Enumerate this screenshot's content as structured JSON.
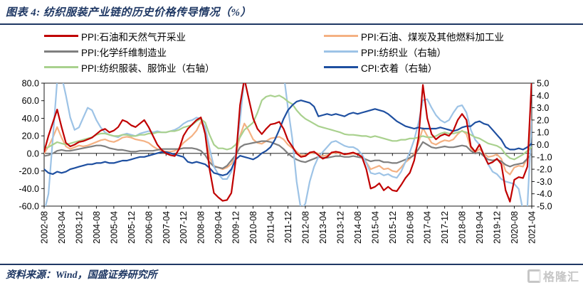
{
  "footer": {
    "source_label": "资料来源：Wind，国盛证券研究所",
    "watermark": "格隆汇"
  },
  "chart_data": {
    "type": "line",
    "title": "图表 4: 纺织服装产业链的历史价格传导情况（%）",
    "x_start": "2002-08",
    "x_end": "2021-04",
    "x_step_months": 2,
    "x_tick_interval_months": 8,
    "x_tick_labels": [
      "2002-08",
      "2003-04",
      "2003-12",
      "2004-08",
      "2005-04",
      "2005-12",
      "2006-08",
      "2007-04",
      "2007-12",
      "2008-08",
      "2009-04",
      "2009-12",
      "2010-08",
      "2011-04",
      "2011-12",
      "2012-08",
      "2013-04",
      "2013-12",
      "2014-08",
      "2015-04",
      "2015-12",
      "2016-08",
      "2017-04",
      "2017-12",
      "2018-08",
      "2019-04",
      "2019-12",
      "2020-08",
      "2021-04"
    ],
    "left_axis": {
      "max": 80,
      "min": -60,
      "tick_labels": [
        "80.0",
        "60.0",
        "40.0",
        "20.0",
        "0.0",
        "-20.0",
        "-40.0",
        "-60.0"
      ]
    },
    "right_axis": {
      "max": 5,
      "min": -5,
      "tick_labels": [
        "5.0",
        "4.0",
        "3.0",
        "2.0",
        "1.0",
        "0.0",
        "-1.0",
        "-2.0",
        "-3.0",
        "-4.0",
        "-5.0"
      ]
    },
    "grid": false,
    "legend_position": "top",
    "series": [
      {
        "name": "PPI:石油和天然气开采业",
        "axis": "left",
        "color": "#C00000",
        "values": [
          2,
          20,
          35,
          50,
          30,
          12,
          8,
          10,
          13,
          14,
          16,
          18,
          22,
          26,
          28,
          24,
          26,
          30,
          38,
          36,
          32,
          30,
          34,
          38,
          30,
          20,
          10,
          4,
          0,
          -2,
          -3,
          5,
          20,
          28,
          33,
          38,
          41,
          22,
          -18,
          -45,
          -50,
          -54,
          -53,
          -45,
          -8,
          55,
          85,
          62,
          40,
          28,
          22,
          28,
          33,
          34,
          36,
          28,
          15,
          8,
          0,
          -4,
          -3,
          1,
          2,
          -2,
          -6,
          -4,
          1,
          2,
          1,
          -1,
          0,
          1,
          -1,
          -4,
          -18,
          -40,
          -38,
          -34,
          -42,
          -38,
          -42,
          -43,
          -36,
          -28,
          -22,
          -8,
          18,
          78,
          40,
          22,
          16,
          20,
          22,
          20,
          26,
          38,
          45,
          38,
          8,
          2,
          10,
          -2,
          -12,
          -10,
          -6,
          -12,
          -42,
          -55,
          -30,
          -27,
          -28,
          -15,
          85
        ]
      },
      {
        "name": "PPI:石油、煤炭及其他燃料加工业",
        "axis": "left",
        "color": "#F4B183",
        "values": [
          0,
          8,
          18,
          30,
          18,
          8,
          5,
          7,
          9,
          8,
          9,
          11,
          13,
          15,
          16,
          14,
          13,
          15,
          18,
          19,
          18,
          16,
          15,
          14,
          12,
          8,
          5,
          3,
          2,
          2,
          3,
          6,
          12,
          16,
          20,
          26,
          36,
          28,
          -5,
          -14,
          -16,
          -18,
          -16,
          -12,
          -2,
          20,
          34,
          26,
          16,
          12,
          11,
          14,
          17,
          18,
          19,
          16,
          10,
          6,
          2,
          -2,
          -2,
          0,
          1,
          0,
          -3,
          -2,
          0,
          1,
          0,
          -1,
          -1,
          0,
          -1,
          -3,
          -10,
          -18,
          -16,
          -14,
          -18,
          -17,
          -20,
          -21,
          -16,
          -10,
          -6,
          0,
          12,
          29,
          20,
          12,
          10,
          13,
          15,
          14,
          16,
          22,
          26,
          22,
          6,
          1,
          5,
          0,
          -4,
          -3,
          -1,
          -6,
          -20,
          -24,
          -16,
          -14,
          -15,
          -5,
          36
        ]
      },
      {
        "name": "PPI:化学纤维制造业",
        "axis": "left",
        "color": "#7F7F7F",
        "values": [
          -3,
          -2,
          0,
          3,
          4,
          3,
          3,
          4,
          5,
          6,
          7,
          8,
          9,
          9,
          8,
          6,
          5,
          4,
          4,
          3,
          2,
          2,
          3,
          3,
          3,
          3,
          4,
          5,
          5,
          5,
          5,
          5,
          6,
          6,
          6,
          5,
          3,
          -2,
          -10,
          -15,
          -16,
          -17,
          -14,
          -8,
          -2,
          7,
          10,
          11,
          12,
          13,
          14,
          14,
          13,
          11,
          9,
          5,
          0,
          -4,
          -7,
          -9,
          -10,
          -8,
          -6,
          -4,
          -5,
          -5,
          -4,
          -3,
          -3,
          -4,
          -4,
          -3,
          -4,
          -5,
          -7,
          -9,
          -8,
          -8,
          -10,
          -10,
          -11,
          -11,
          -9,
          -7,
          -5,
          -2,
          5,
          13,
          10,
          7,
          6,
          7,
          8,
          7,
          7,
          8,
          9,
          8,
          3,
          0,
          1,
          -3,
          -7,
          -8,
          -7,
          -9,
          -13,
          -15,
          -13,
          -12,
          -11,
          -6,
          0
        ]
      },
      {
        "name": "PPI:纺织业（右轴）",
        "axis": "right",
        "color": "#9DC3E6",
        "values": [
          -5.5,
          -4,
          0.5,
          5.2,
          5.6,
          4,
          2.2,
          1.2,
          1.4,
          2.2,
          3,
          2.8,
          2,
          1.4,
          1,
          0.8,
          0.7,
          0.6,
          0.8,
          0.9,
          0.8,
          0.7,
          0.9,
          1,
          1.1,
          1,
          1.1,
          1,
          1,
          1.1,
          1.2,
          1.4,
          1.7,
          1.9,
          2,
          2.2,
          2.1,
          1.4,
          -0.3,
          -1.8,
          -2.4,
          -2.8,
          -2.8,
          -2.2,
          -0.8,
          2,
          5.4,
          6.5,
          7,
          7,
          6.8,
          6.5,
          6.8,
          7,
          6.5,
          5.8,
          3,
          0.5,
          -3,
          -5.3,
          -4.8,
          -3,
          -1.8,
          -1,
          -0.6,
          -0.2,
          0.2,
          0.3,
          0.1,
          -0.1,
          -0.2,
          -0.2,
          -0.4,
          -0.8,
          -1.5,
          -2.3,
          -2.4,
          -2.3,
          -2.5,
          -2.4,
          -2.6,
          -2.7,
          -2.2,
          -1.4,
          -0.6,
          0.4,
          1.8,
          3.6,
          3.7,
          3,
          2.4,
          2,
          1.8,
          2,
          2.6,
          3.1,
          3.2,
          2.6,
          1.2,
          0.4,
          0,
          -0.8,
          -1.6,
          -2.2,
          -2.4,
          -2.8,
          -3,
          -3.1,
          -3.2,
          -3.6,
          -5.4,
          -5,
          1.9
        ]
      },
      {
        "name": "PPI:纺织服装、服饰业（右轴）",
        "axis": "right",
        "color": "#A9D18E",
        "values": [
          -0.3,
          -0.2,
          0,
          0.2,
          0.1,
          0,
          0.1,
          0.2,
          0.3,
          0.4,
          0.5,
          0.6,
          0.8,
          0.9,
          0.9,
          0.8,
          0.7,
          0.7,
          0.8,
          0.8,
          0.7,
          0.7,
          0.8,
          0.8,
          0.9,
          0.9,
          1,
          1,
          1,
          1.1,
          1.1,
          1.2,
          1.4,
          1.5,
          1.6,
          1.9,
          2.1,
          1.8,
          0.8,
          0,
          -0.3,
          -0.3,
          -0.4,
          -0.3,
          0,
          0.6,
          1.2,
          1.5,
          1.8,
          2.6,
          3.6,
          3.9,
          4,
          3.9,
          4,
          3.8,
          3.5,
          3.3,
          2.8,
          2.4,
          2.1,
          1.9,
          1.7,
          1.5,
          1.4,
          1.3,
          1.2,
          1.1,
          1,
          0.85,
          0.8,
          0.8,
          0.75,
          0.7,
          0.7,
          0.6,
          0.7,
          0.6,
          0.5,
          0.4,
          0.3,
          0.3,
          0.4,
          0.4,
          0.5,
          0.5,
          0.6,
          0.7,
          0.6,
          0.6,
          0.7,
          0.9,
          1,
          0.9,
          0.9,
          1,
          1.1,
          1,
          0.8,
          0.6,
          0.5,
          0.3,
          0.1,
          0,
          -0.1,
          -0.3,
          -0.8,
          -1.1,
          -1.2,
          -1,
          -0.8,
          -0.5,
          -0.2
        ]
      },
      {
        "name": "CPI:衣着（右轴）",
        "axis": "right",
        "color": "#1E4FA0",
        "values": [
          -2,
          -2.3,
          -2.4,
          -2.2,
          -2.3,
          -2.2,
          -2,
          -1.9,
          -1.8,
          -1.7,
          -1.6,
          -1.6,
          -1.5,
          -1.5,
          -1.4,
          -1.5,
          -1.5,
          -1.4,
          -1.3,
          -1.3,
          -1.2,
          -1.1,
          -1,
          -1,
          -0.9,
          -0.8,
          -0.7,
          -0.6,
          -0.6,
          -0.7,
          -0.8,
          -0.9,
          -1,
          -1.4,
          -1.5,
          -1.4,
          -1.5,
          -1.6,
          -1.9,
          -2.3,
          -2.4,
          -2.5,
          -2.4,
          -2,
          -1.2,
          -0.9,
          -1,
          -1.1,
          -1.2,
          -1,
          -0.7,
          -0.5,
          -0.2,
          0.4,
          1.2,
          2.1,
          2.8,
          3.2,
          3.5,
          3.6,
          3.5,
          3.4,
          3.1,
          2.3,
          2.4,
          2.5,
          2.4,
          2.5,
          2.4,
          2.3,
          2.5,
          2.6,
          2.5,
          2.6,
          2.7,
          2.8,
          2.9,
          2.8,
          2.7,
          2.5,
          2.2,
          1.9,
          1.7,
          1.5,
          1.4,
          1.3,
          1.4,
          1.3,
          1.3,
          1.3,
          1.3,
          1.4,
          1.3,
          1.2,
          1.1,
          1.2,
          1.4,
          1.5,
          1.5,
          1.8,
          1.9,
          1.7,
          1.6,
          1.2,
          0.8,
          0.4,
          -0.2,
          -0.4,
          -0.4,
          -0.3,
          -0.4,
          -0.2,
          0.1
        ]
      }
    ]
  }
}
